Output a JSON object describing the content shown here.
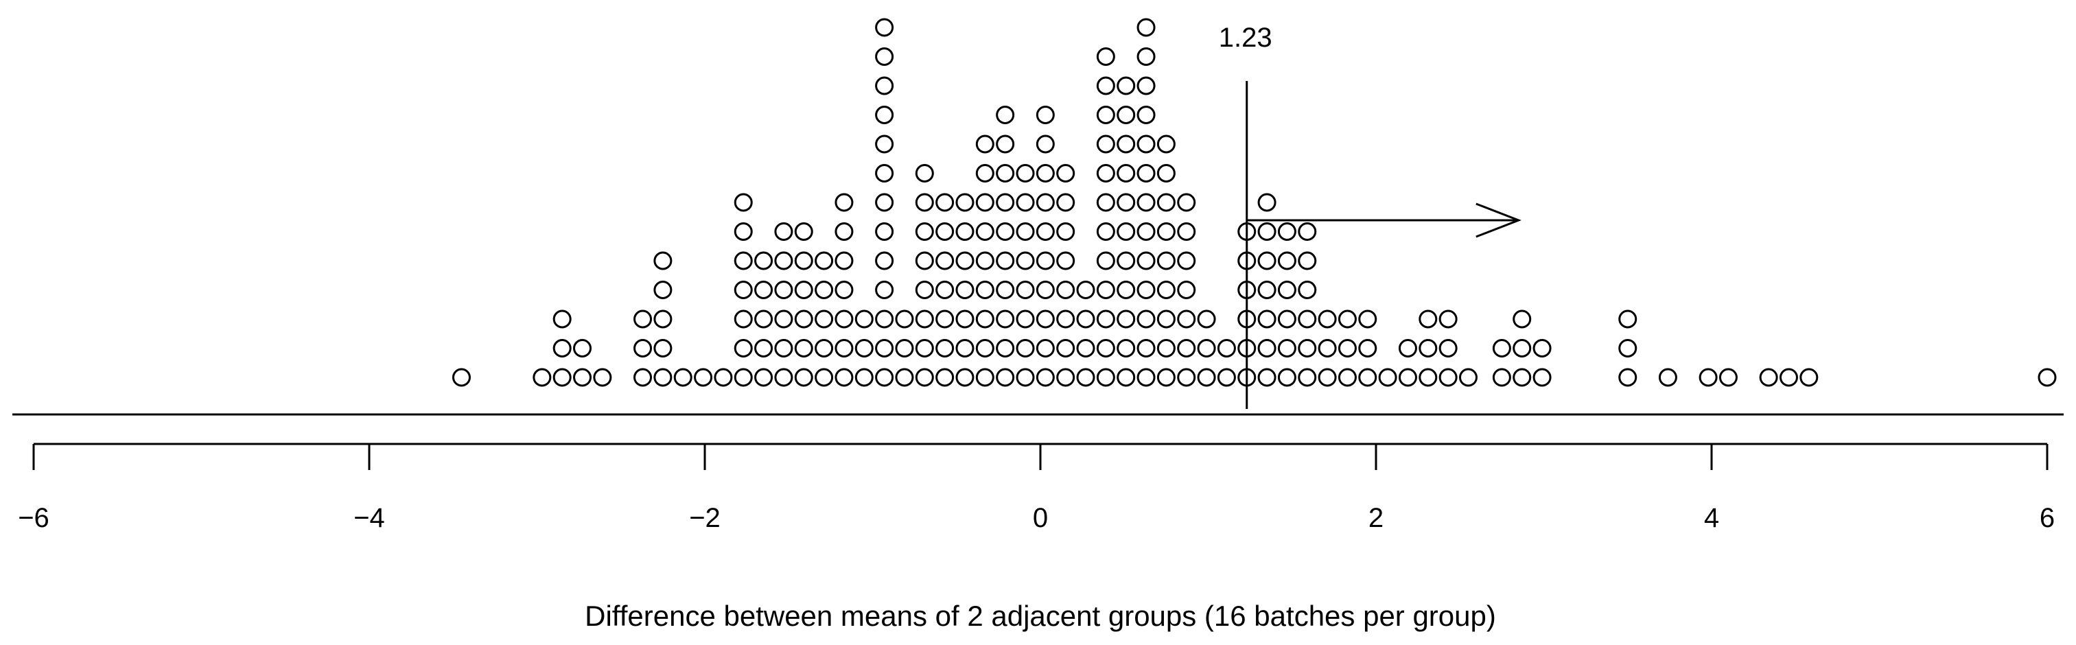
{
  "chart_data": {
    "type": "scatter",
    "subtype": "dot-plot",
    "title": "",
    "xlabel": "Difference between means of 2 adjacent groups (16 batches per group)",
    "ylabel": "",
    "xlim": [
      -6,
      6
    ],
    "xticks": [
      "−6",
      "−4",
      "−2",
      "0",
      "2",
      "4",
      "6"
    ],
    "grid": false,
    "marker": "open-circle",
    "annotation": {
      "label": "1.23",
      "x": 1.23,
      "arrow_to_x": 2.85,
      "arrow_direction": "right"
    },
    "stacks": [
      {
        "x": -3.45,
        "count": 1
      },
      {
        "x": -2.97,
        "count": 1
      },
      {
        "x": -2.85,
        "count": 3
      },
      {
        "x": -2.73,
        "count": 2
      },
      {
        "x": -2.61,
        "count": 1
      },
      {
        "x": -2.37,
        "count": 3
      },
      {
        "x": -2.25,
        "count": 5
      },
      {
        "x": -2.13,
        "count": 1
      },
      {
        "x": -2.01,
        "count": 1
      },
      {
        "x": -1.89,
        "count": 1
      },
      {
        "x": -1.77,
        "count": 7
      },
      {
        "x": -1.65,
        "count": 5
      },
      {
        "x": -1.53,
        "count": 6
      },
      {
        "x": -1.41,
        "count": 6
      },
      {
        "x": -1.29,
        "count": 5
      },
      {
        "x": -1.17,
        "count": 7
      },
      {
        "x": -1.05,
        "count": 3
      },
      {
        "x": -0.93,
        "count": 13
      },
      {
        "x": -0.81,
        "count": 3
      },
      {
        "x": -0.69,
        "count": 8
      },
      {
        "x": -0.57,
        "count": 7
      },
      {
        "x": -0.45,
        "count": 7
      },
      {
        "x": -0.33,
        "count": 9
      },
      {
        "x": -0.21,
        "count": 10
      },
      {
        "x": -0.09,
        "count": 8
      },
      {
        "x": 0.03,
        "count": 10
      },
      {
        "x": 0.15,
        "count": 8
      },
      {
        "x": 0.27,
        "count": 4
      },
      {
        "x": 0.39,
        "count": 12
      },
      {
        "x": 0.51,
        "count": 11
      },
      {
        "x": 0.63,
        "count": 13
      },
      {
        "x": 0.75,
        "count": 9
      },
      {
        "x": 0.87,
        "count": 7
      },
      {
        "x": 0.99,
        "count": 3
      },
      {
        "x": 1.11,
        "count": 2
      },
      {
        "x": 1.23,
        "count": 6
      },
      {
        "x": 1.35,
        "count": 7
      },
      {
        "x": 1.47,
        "count": 6
      },
      {
        "x": 1.59,
        "count": 6
      },
      {
        "x": 1.71,
        "count": 3
      },
      {
        "x": 1.83,
        "count": 3
      },
      {
        "x": 1.95,
        "count": 3
      },
      {
        "x": 2.07,
        "count": 1
      },
      {
        "x": 2.19,
        "count": 2
      },
      {
        "x": 2.31,
        "count": 3
      },
      {
        "x": 2.43,
        "count": 3
      },
      {
        "x": 2.55,
        "count": 1
      },
      {
        "x": 2.75,
        "count": 2
      },
      {
        "x": 2.87,
        "count": 3
      },
      {
        "x": 2.99,
        "count": 2
      },
      {
        "x": 3.5,
        "count": 3
      },
      {
        "x": 3.74,
        "count": 1
      },
      {
        "x": 3.98,
        "count": 1
      },
      {
        "x": 4.1,
        "count": 1
      },
      {
        "x": 4.34,
        "count": 1
      },
      {
        "x": 4.46,
        "count": 1
      },
      {
        "x": 4.58,
        "count": 1
      },
      {
        "x": 6.0,
        "count": 1
      }
    ]
  }
}
